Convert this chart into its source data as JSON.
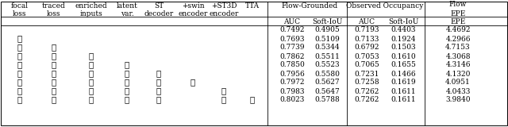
{
  "col_headers_l1": [
    "focal",
    "traced",
    "enriched",
    "latent",
    "ST",
    "+swin",
    "+ST3D",
    "TTA"
  ],
  "col_headers_l2": [
    "loss",
    "loss",
    "inputs",
    "var.",
    "decoder",
    "encoder",
    "encoder",
    ""
  ],
  "metric_top": [
    {
      "label": "Flow-Grounded",
      "span": [
        0,
        1
      ]
    },
    {
      "label": "Observed Occupancy",
      "span": [
        2,
        3
      ]
    },
    {
      "label": "Flow",
      "span": [
        4
      ]
    }
  ],
  "metric_sub": [
    "AUC",
    "Soft-IoU",
    "AUC",
    "Soft-IoU",
    "EPE"
  ],
  "checkmarks": [
    [
      0,
      0,
      0,
      0,
      0,
      0,
      0,
      0
    ],
    [
      1,
      0,
      0,
      0,
      0,
      0,
      0,
      0
    ],
    [
      1,
      1,
      0,
      0,
      0,
      0,
      0,
      0
    ],
    [
      1,
      1,
      1,
      0,
      0,
      0,
      0,
      0
    ],
    [
      1,
      1,
      1,
      1,
      0,
      0,
      0,
      0
    ],
    [
      1,
      1,
      1,
      1,
      1,
      0,
      0,
      0
    ],
    [
      1,
      1,
      1,
      1,
      1,
      1,
      0,
      0
    ],
    [
      1,
      1,
      1,
      1,
      1,
      0,
      1,
      0
    ],
    [
      1,
      1,
      1,
      1,
      1,
      0,
      1,
      1
    ]
  ],
  "values": [
    [
      0.7492,
      0.4905,
      0.7193,
      0.4403,
      4.4692
    ],
    [
      0.7693,
      0.5109,
      0.7133,
      0.1924,
      4.2966
    ],
    [
      0.7739,
      0.5344,
      0.6792,
      0.1503,
      4.7153
    ],
    [
      0.7862,
      0.5511,
      0.7053,
      0.161,
      4.3068
    ],
    [
      0.785,
      0.5523,
      0.7065,
      0.1655,
      4.3146
    ],
    [
      0.7956,
      0.558,
      0.7231,
      0.1466,
      4.132
    ],
    [
      0.7972,
      0.5627,
      0.7258,
      0.1619,
      4.0951
    ],
    [
      0.7983,
      0.5647,
      0.7262,
      0.1611,
      4.0433
    ],
    [
      0.8023,
      0.5788,
      0.7262,
      0.1611,
      3.984
    ]
  ],
  "bg_color": "#ffffff",
  "line_color": "#000000",
  "font_size": 6.5,
  "check_font_size": 7.5,
  "check_symbol": "✓"
}
